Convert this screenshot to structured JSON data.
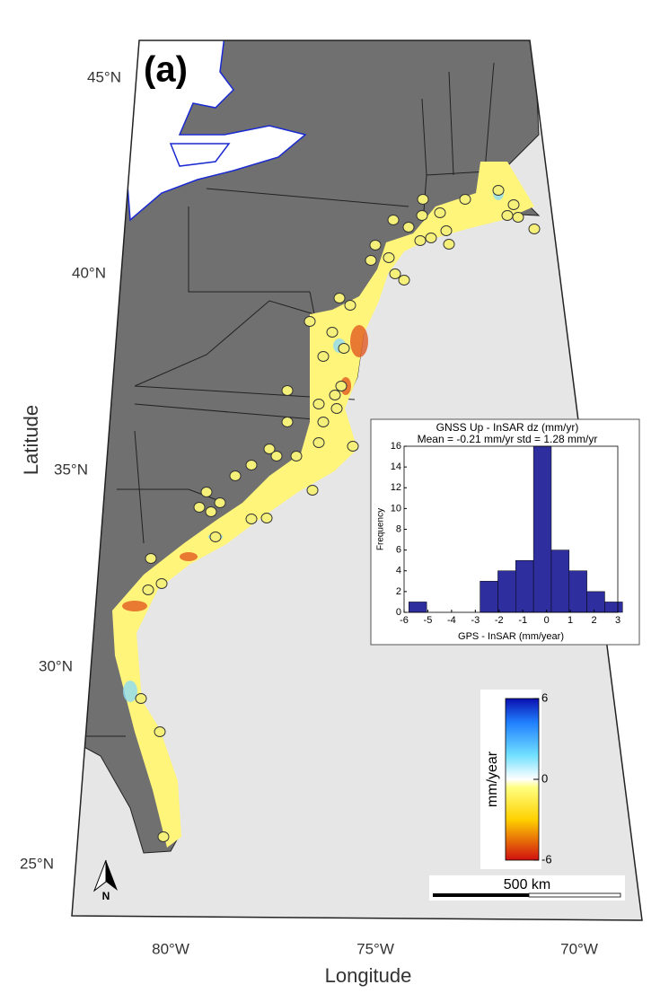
{
  "panel_label": "(a)",
  "axes": {
    "y_label": "Latitude",
    "x_label": "Longitude",
    "lat_labels": [
      "45°N",
      "40°N",
      "35°N",
      "30°N",
      "25°N"
    ],
    "lon_labels": [
      "80°W",
      "75°W",
      "70°W"
    ]
  },
  "north_arrow": "N",
  "scale_bar": "500 km",
  "colorbar": {
    "label": "mm/year",
    "lim": [
      -6,
      6
    ],
    "ticks": [
      6,
      0,
      -6
    ]
  },
  "chart_data": {
    "type": "histogram",
    "title": "GNSS Up - InSAR dz (mm/yr)",
    "subtitle": "Mean = -0.21 mm/yr  std = 1.28 mm/yr",
    "x_label": "GPS - InSAR (mm/year)",
    "y_label": "Frequency",
    "bins": [
      -5.8,
      -5.05,
      -4.3,
      -3.55,
      -2.8,
      -2.05,
      -1.3,
      -0.55,
      0.2,
      0.95,
      1.7,
      2.45,
      3.2
    ],
    "values": [
      1,
      0,
      0,
      0,
      3,
      4,
      5,
      16,
      6,
      4,
      2,
      1
    ],
    "color": "#2e2e9e",
    "xlim": [
      -6,
      3
    ],
    "xticks": [
      -6,
      -5,
      -4,
      -3,
      -2,
      -1,
      0,
      1,
      2,
      3
    ],
    "ylim": [
      0,
      16
    ],
    "yticks": [
      0,
      2,
      4,
      6,
      8,
      10,
      12,
      14,
      16
    ]
  }
}
